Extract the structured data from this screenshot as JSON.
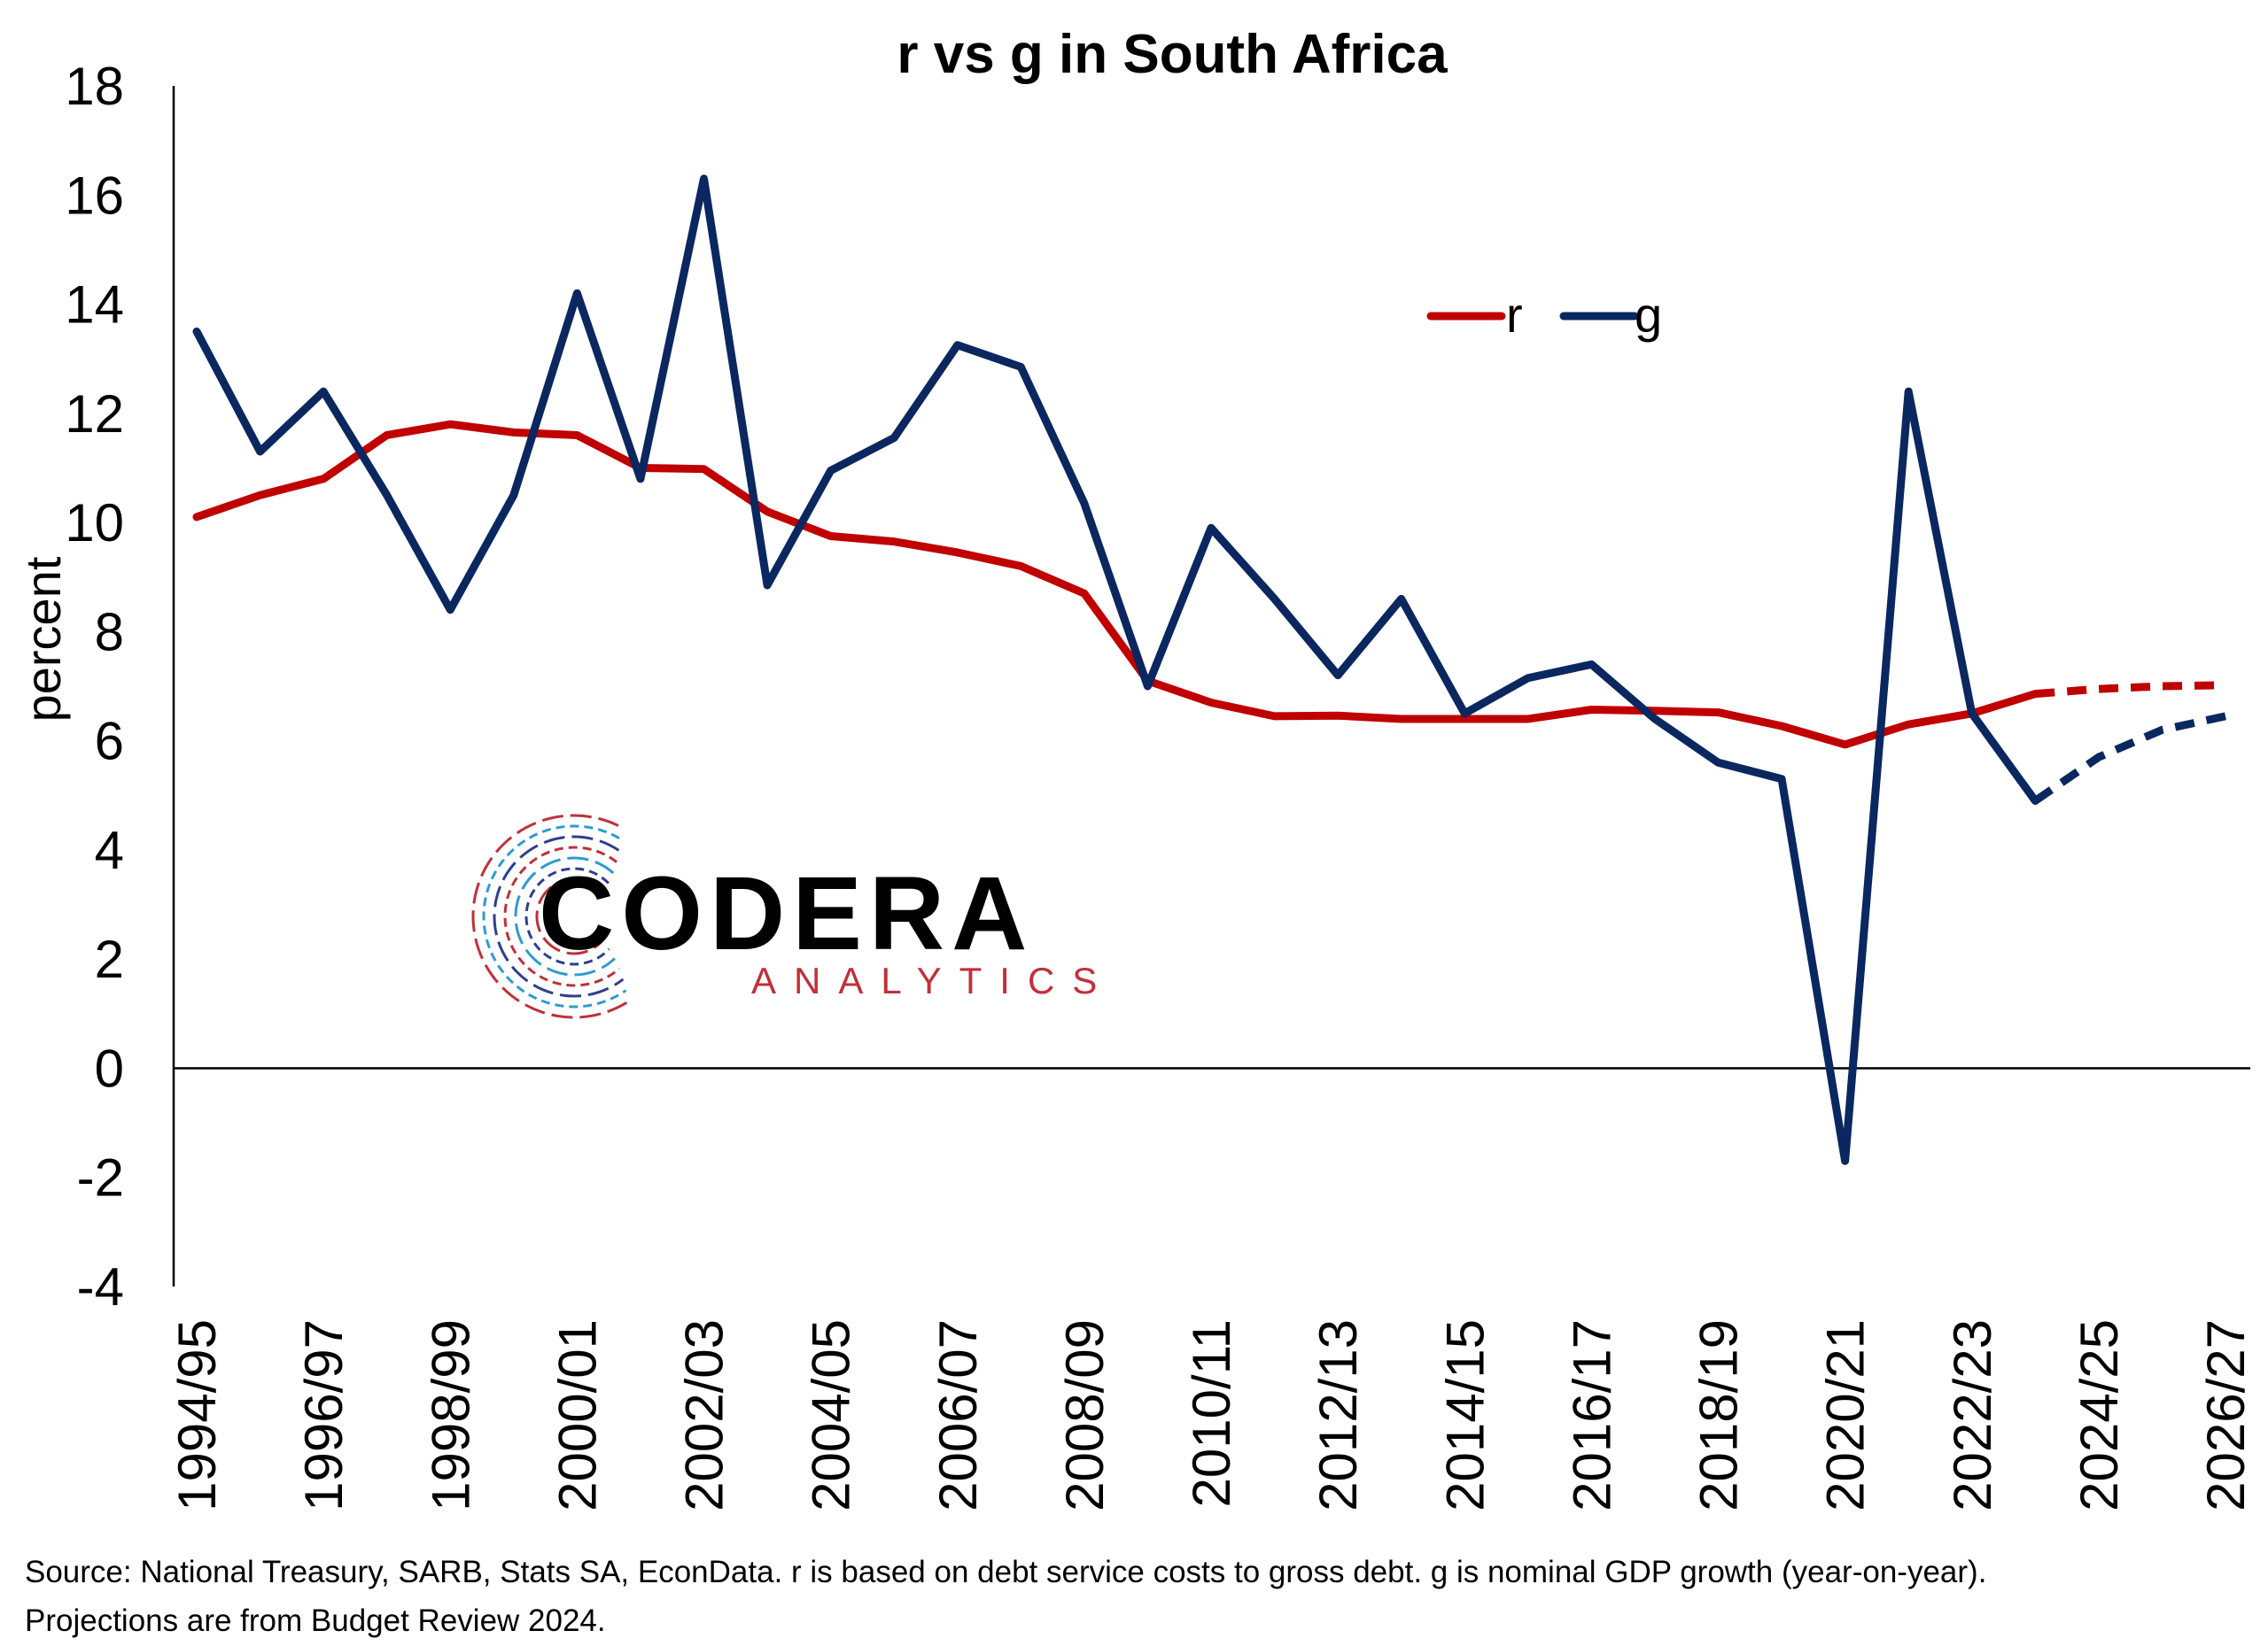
{
  "chart_data": {
    "type": "line",
    "title": "r vs g in South Africa",
    "xlabel": "",
    "ylabel": "percent",
    "ylim": [
      -4,
      18
    ],
    "yticks": [
      18,
      16,
      14,
      12,
      10,
      8,
      6,
      4,
      2,
      0,
      -2,
      -4
    ],
    "grid": false,
    "legend_position": "top-right",
    "categories": [
      "1994/95",
      "1995/96",
      "1996/97",
      "1997/98",
      "1998/99",
      "1999/00",
      "2000/01",
      "2001/02",
      "2002/03",
      "2003/04",
      "2004/05",
      "2005/06",
      "2006/07",
      "2007/08",
      "2008/09",
      "2009/10",
      "2010/11",
      "2011/12",
      "2012/13",
      "2013/14",
      "2014/15",
      "2015/16",
      "2016/17",
      "2017/18",
      "2018/19",
      "2019/20",
      "2020/21",
      "2021/22",
      "2022/23",
      "2023/24",
      "2024/25",
      "2025/26",
      "2026/27"
    ],
    "tick_labels": [
      "1994/95",
      "1996/97",
      "1998/99",
      "2000/01",
      "2002/03",
      "2004/05",
      "2006/07",
      "2008/09",
      "2010/11",
      "2012/13",
      "2014/15",
      "2016/17",
      "2018/19",
      "2020/21",
      "2022/23",
      "2024/25",
      "2026/27"
    ],
    "projection_start_index": 29,
    "series": [
      {
        "name": "r",
        "color": "#C00000",
        "values": [
          10.1,
          10.5,
          10.8,
          11.6,
          11.8,
          11.65,
          11.6,
          11.0,
          10.98,
          10.2,
          9.75,
          9.65,
          9.45,
          9.2,
          8.7,
          7.1,
          6.7,
          6.45,
          6.46,
          6.4,
          6.4,
          6.4,
          6.57,
          6.55,
          6.52,
          6.27,
          5.93,
          6.3,
          6.5,
          6.86,
          6.95,
          7.0,
          7.02
        ]
      },
      {
        "name": "g",
        "color": "#0B2760",
        "values": [
          13.5,
          11.3,
          12.4,
          10.5,
          8.4,
          10.5,
          14.2,
          10.8,
          16.3,
          8.85,
          10.95,
          11.55,
          13.25,
          12.85,
          10.35,
          7.0,
          9.9,
          8.6,
          7.2,
          8.6,
          6.5,
          7.15,
          7.4,
          6.4,
          5.6,
          5.3,
          -1.7,
          12.4,
          6.5,
          4.9,
          5.7,
          6.2,
          6.45
        ]
      }
    ]
  },
  "source_text": "Source: National Treasury, SARB, Stats SA, EconData. r is based on debt service costs to gross debt. g is nominal GDP growth (year-on-year).",
  "source_text_2": "Projections are from Budget Review 2024.",
  "logo": {
    "word": "CODERA",
    "sub": "ANALYTICS",
    "colors": [
      "#C0303A",
      "#2D3F8E",
      "#2E9BD0"
    ]
  }
}
